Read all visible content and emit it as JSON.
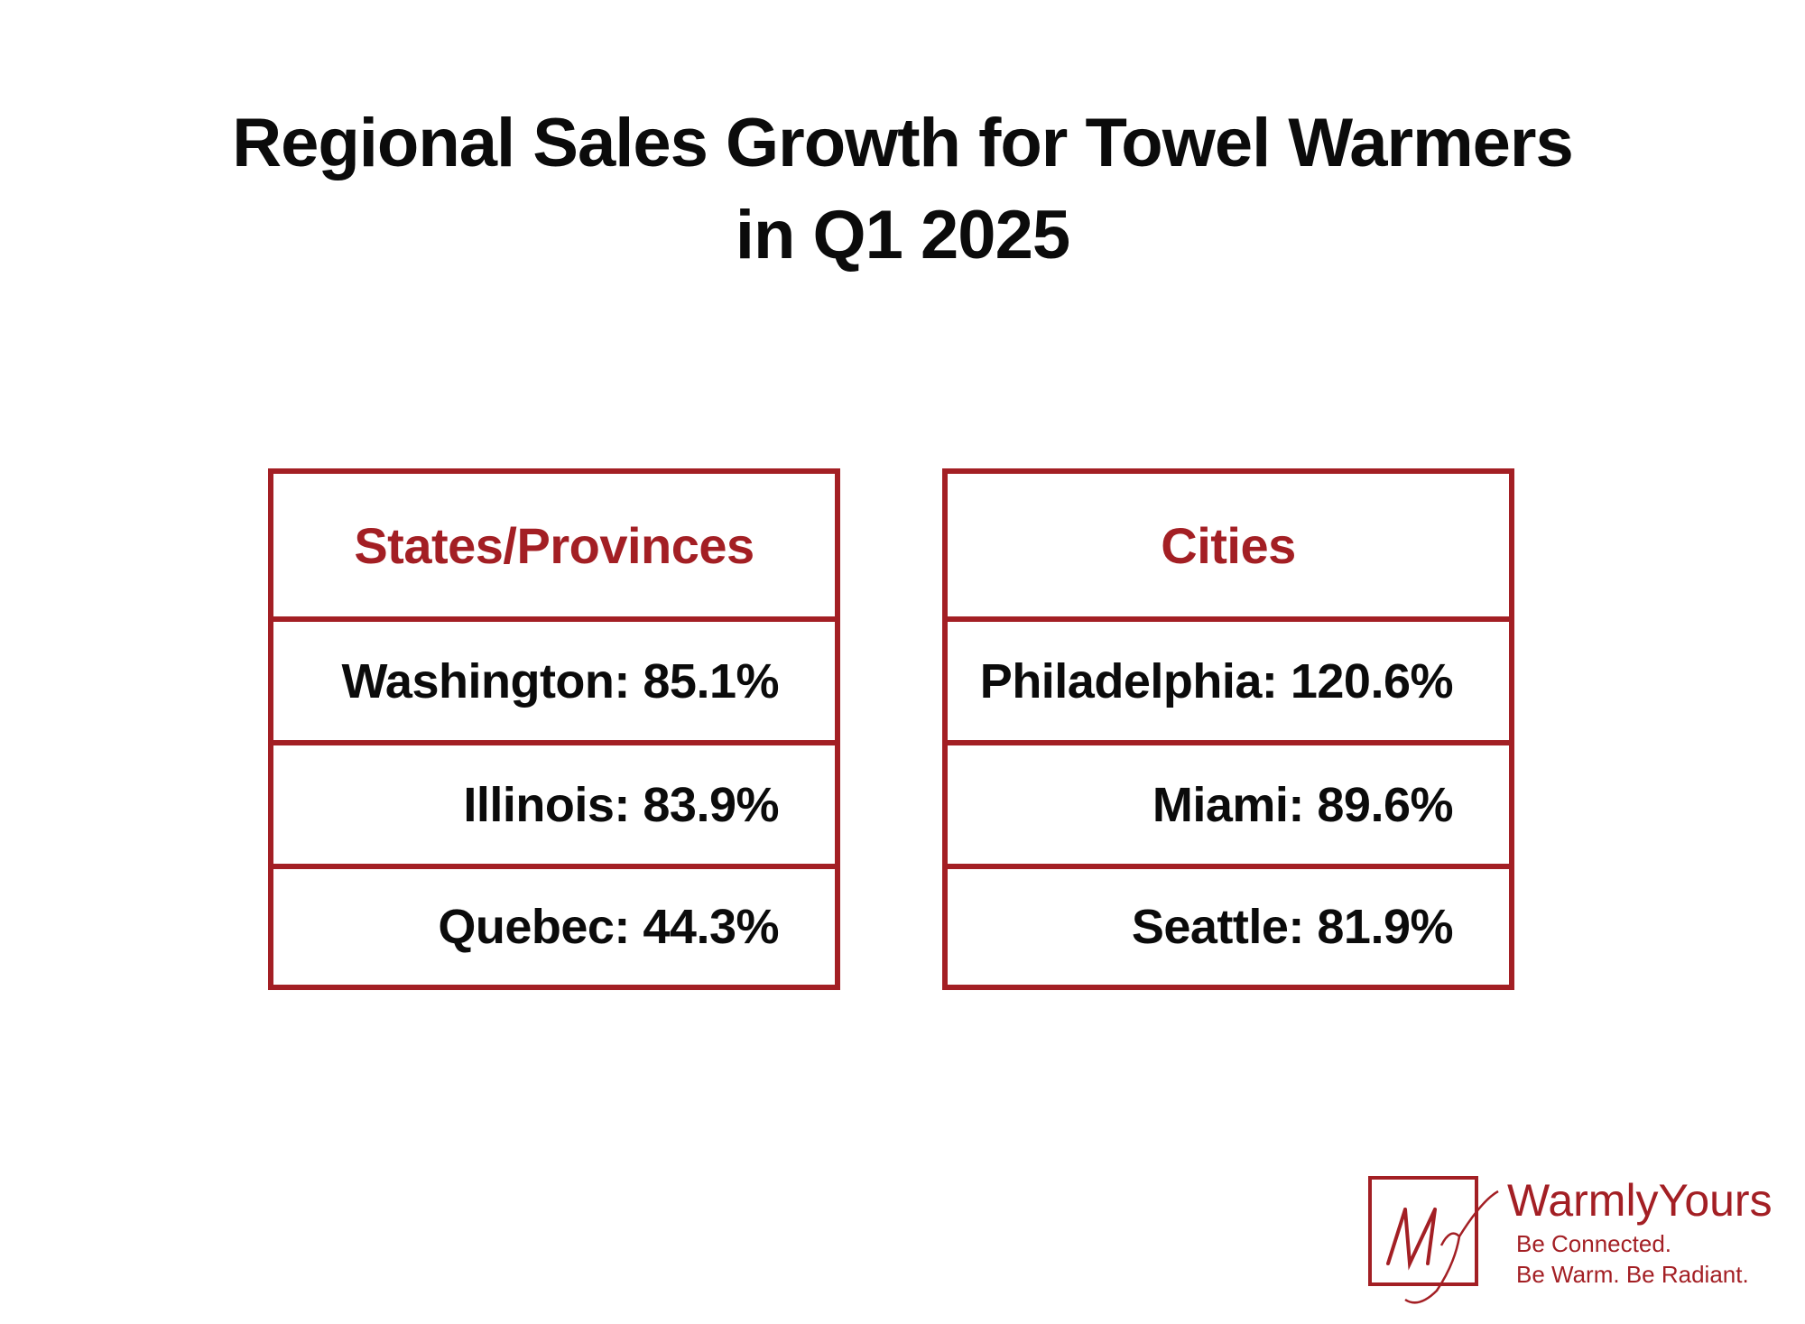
{
  "title": {
    "line1": "Regional Sales Growth for Towel Warmers",
    "line2": "in Q1 2025"
  },
  "tables": [
    {
      "header": "States/Provinces",
      "rows": [
        "Washington: 85.1%",
        "Illinois: 83.9%",
        "Quebec: 44.3%"
      ]
    },
    {
      "header": "Cities",
      "rows": [
        "Philadelphia: 120.6%",
        "Miami: 89.6%",
        "Seattle: 81.9%"
      ]
    }
  ],
  "logo": {
    "monogram": "Wy",
    "brand": "WarmlyYours",
    "tagline1": "Be Connected.",
    "tagline2": "Be Warm. Be Radiant."
  },
  "colors": {
    "accent": "#a31f24",
    "text": "#0b0b0b",
    "background": "#ffffff"
  }
}
